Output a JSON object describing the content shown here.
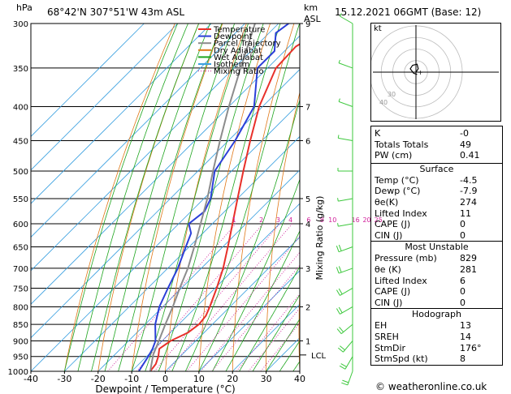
{
  "header": {
    "hpa_label": "hPa",
    "location": "68°42'N  307°51'W  43m  ASL",
    "km_label": "km",
    "asl_label": "ASL",
    "datetime": "15.12.2021  06GMT  (Base: 12)"
  },
  "credit": "© weatheronline.co.uk",
  "hodograph": {
    "label": "kt",
    "ring_labels": [
      "10",
      "20",
      "30",
      "40"
    ],
    "points_kt": [
      [
        0,
        0
      ],
      [
        2,
        3
      ],
      [
        1,
        7
      ],
      [
        -3,
        6
      ],
      [
        -5,
        3
      ],
      [
        -2,
        -1
      ],
      [
        1,
        -2
      ]
    ]
  },
  "indices": {
    "top": [
      {
        "label": "K",
        "value": "-0"
      },
      {
        "label": "Totals Totals",
        "value": "49"
      },
      {
        "label": "PW (cm)",
        "value": "0.41"
      }
    ],
    "surface": {
      "title": "Surface",
      "rows": [
        {
          "label": "Temp (°C)",
          "value": "-4.5"
        },
        {
          "label": "Dewp (°C)",
          "value": "-7.9"
        },
        {
          "label": "θe(K)",
          "value": "274"
        },
        {
          "label": "Lifted Index",
          "value": "11"
        },
        {
          "label": "CAPE (J)",
          "value": "0"
        },
        {
          "label": "CIN (J)",
          "value": "0"
        }
      ]
    },
    "most_unstable": {
      "title": "Most Unstable",
      "rows": [
        {
          "label": "Pressure (mb)",
          "value": "829"
        },
        {
          "label": "θe (K)",
          "value": "281"
        },
        {
          "label": "Lifted Index",
          "value": "6"
        },
        {
          "label": "CAPE (J)",
          "value": "0"
        },
        {
          "label": "CIN (J)",
          "value": "0"
        }
      ]
    },
    "hodograph": {
      "title": "Hodograph",
      "rows": [
        {
          "label": "EH",
          "value": "13"
        },
        {
          "label": "SREH",
          "value": "14"
        },
        {
          "label": "StmDir",
          "value": "176°"
        },
        {
          "label": "StmSpd (kt)",
          "value": "8"
        }
      ]
    }
  },
  "colors": {
    "temperature": "#e8302a",
    "dewpoint": "#2b3fd8",
    "parcel": "#8c8c8c",
    "dry_adiabat": "#e07818",
    "wet_adiabat": "#1ea51e",
    "isotherm": "#3aa0e0",
    "mixing_ratio": "#d0209a",
    "wind": "#3cc83c"
  },
  "chart_data": {
    "type": "line",
    "title": "",
    "xlabel": "Dewpoint / Temperature (°C)",
    "ylabel": "",
    "right_axis_label": "Mixing Ratio (g/kg)",
    "xlim": [
      -40,
      40
    ],
    "ylim_hpa": [
      1000,
      300
    ],
    "x_ticks": [
      -40,
      -30,
      -20,
      -10,
      0,
      10,
      20,
      30,
      40
    ],
    "pressure_levels": [
      300,
      350,
      400,
      450,
      500,
      550,
      600,
      650,
      700,
      750,
      800,
      850,
      900,
      950,
      1000
    ],
    "km_ticks": [
      {
        "p": 300,
        "km": "9"
      },
      {
        "p": 400,
        "km": "7"
      },
      {
        "p": 450,
        "km": "6"
      },
      {
        "p": 550,
        "km": "5"
      },
      {
        "p": 600,
        "km": "4"
      },
      {
        "p": 700,
        "km": "3"
      },
      {
        "p": 800,
        "km": "2"
      },
      {
        "p": 900,
        "km": "1"
      }
    ],
    "lcl": {
      "label": "LCL",
      "p": 945
    },
    "mixing_ratio_labels": [
      "1",
      "2",
      "3",
      "4",
      "6",
      "8",
      "10",
      "16",
      "20",
      "25"
    ],
    "mixing_ratio_values": [
      1,
      2,
      3,
      4,
      6,
      8,
      10,
      16,
      20,
      25
    ],
    "legend": {
      "placement": "top-center",
      "entries": [
        "Temperature",
        "Dewpoint",
        "Parcel Trajectory",
        "Dry Adiabat",
        "Wet Adiabat",
        "Isotherm",
        "Mixing Ratio"
      ]
    },
    "series": [
      {
        "name": "Temperature",
        "points": [
          [
            1000,
            -4.5
          ],
          [
            975,
            -5.0
          ],
          [
            950,
            -6.5
          ],
          [
            925,
            -8.5
          ],
          [
            900,
            -7.5
          ],
          [
            875,
            -4.8
          ],
          [
            850,
            -4.0
          ],
          [
            825,
            -4.5
          ],
          [
            800,
            -6.0
          ],
          [
            750,
            -9.5
          ],
          [
            700,
            -13.5
          ],
          [
            650,
            -18.5
          ],
          [
            600,
            -24.0
          ],
          [
            550,
            -30.0
          ],
          [
            500,
            -36.5
          ],
          [
            450,
            -43.5
          ],
          [
            400,
            -51.0
          ],
          [
            350,
            -57.5
          ],
          [
            325,
            -58.0
          ],
          [
            310,
            -55.5
          ],
          [
            300,
            -54.5
          ]
        ]
      },
      {
        "name": "Dewpoint",
        "points": [
          [
            1000,
            -7.9
          ],
          [
            950,
            -9.5
          ],
          [
            925,
            -10.5
          ],
          [
            900,
            -12.0
          ],
          [
            850,
            -17.0
          ],
          [
            800,
            -21.0
          ],
          [
            750,
            -24.0
          ],
          [
            700,
            -27.0
          ],
          [
            650,
            -31.0
          ],
          [
            620,
            -33.5
          ],
          [
            600,
            -37.0
          ],
          [
            575,
            -36.0
          ],
          [
            550,
            -38.0
          ],
          [
            500,
            -45.0
          ],
          [
            450,
            -48.0
          ],
          [
            400,
            -52.5
          ],
          [
            350,
            -63.0
          ],
          [
            330,
            -63.0
          ],
          [
            310,
            -68.0
          ],
          [
            300,
            -67.0
          ]
        ]
      },
      {
        "name": "Parcel Trajectory",
        "points": [
          [
            1000,
            -4.5
          ],
          [
            945,
            -8.5
          ],
          [
            900,
            -11.0
          ],
          [
            850,
            -14.0
          ],
          [
            800,
            -17.0
          ],
          [
            750,
            -20.5
          ],
          [
            700,
            -24.0
          ],
          [
            650,
            -28.5
          ],
          [
            600,
            -33.5
          ],
          [
            550,
            -39.0
          ],
          [
            500,
            -45.5
          ],
          [
            450,
            -52.5
          ],
          [
            400,
            -60.0
          ],
          [
            350,
            -68.0
          ],
          [
            300,
            -77.0
          ]
        ]
      }
    ],
    "wind_barbs": [
      {
        "p": 1000,
        "dir": 200,
        "spd_kt": 8
      },
      {
        "p": 950,
        "dir": 210,
        "spd_kt": 10
      },
      {
        "p": 900,
        "dir": 220,
        "spd_kt": 10
      },
      {
        "p": 850,
        "dir": 230,
        "spd_kt": 12
      },
      {
        "p": 800,
        "dir": 240,
        "spd_kt": 10
      },
      {
        "p": 750,
        "dir": 240,
        "spd_kt": 10
      },
      {
        "p": 700,
        "dir": 250,
        "spd_kt": 8
      },
      {
        "p": 650,
        "dir": 250,
        "spd_kt": 8
      },
      {
        "p": 600,
        "dir": 260,
        "spd_kt": 5
      },
      {
        "p": 550,
        "dir": 260,
        "spd_kt": 5
      },
      {
        "p": 500,
        "dir": 270,
        "spd_kt": 5
      },
      {
        "p": 450,
        "dir": 280,
        "spd_kt": 5
      },
      {
        "p": 400,
        "dir": 290,
        "spd_kt": 5
      },
      {
        "p": 350,
        "dir": 290,
        "spd_kt": 5
      },
      {
        "p": 300,
        "dir": 300,
        "spd_kt": 5
      }
    ]
  }
}
